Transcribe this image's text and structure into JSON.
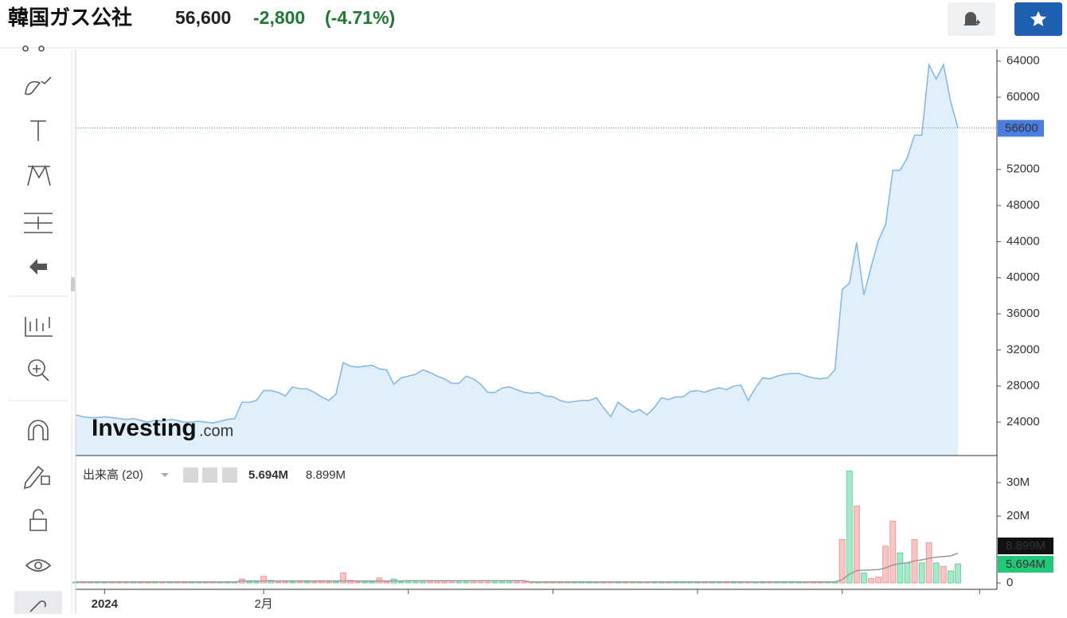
{
  "header": {
    "title": "韓国ガス公社",
    "price": "56,600",
    "change": "-2,800",
    "change_pct": "(-4.71%)",
    "watermark": [
      "Investing",
      ".com"
    ]
  },
  "chart_data": [
    {
      "type": "area",
      "color": "#86b9e4",
      "fill": "#e1effa",
      "categories": [
        null,
        null,
        null,
        null,
        "2024",
        null,
        null,
        null,
        null,
        null,
        null,
        null,
        null,
        null,
        null,
        null,
        null,
        null,
        null,
        null,
        null,
        null,
        null,
        null,
        null,
        null,
        "2月",
        null,
        null,
        null,
        null,
        null,
        null,
        null,
        null,
        null,
        null,
        null,
        null,
        null,
        null,
        null,
        null,
        null,
        null,
        null,
        null,
        null,
        null,
        null,
        null,
        null,
        null,
        null,
        null,
        null,
        null,
        null,
        null,
        null,
        null,
        null,
        null,
        null,
        null,
        null,
        null,
        null,
        null,
        null,
        null,
        null,
        null,
        null,
        null,
        null,
        null,
        null,
        null,
        null,
        null,
        null,
        null,
        null,
        null,
        null,
        null,
        null,
        null,
        null,
        null,
        null,
        null,
        null,
        null,
        null,
        null,
        null,
        null,
        null,
        null,
        null,
        null,
        null,
        null,
        null,
        null,
        null,
        null,
        null,
        null,
        null,
        null,
        null,
        null,
        null,
        null,
        null,
        null,
        null,
        null,
        null,
        null
      ],
      "values": [
        24800,
        24600,
        24500,
        24500,
        24600,
        24500,
        24400,
        24300,
        24400,
        24200,
        24000,
        24200,
        24100,
        24300,
        24200,
        24000,
        24000,
        24100,
        24000,
        23900,
        24100,
        24300,
        24400,
        26200,
        26200,
        26400,
        27500,
        27500,
        27300,
        26900,
        27900,
        27700,
        27700,
        27300,
        26800,
        26400,
        27100,
        30600,
        30200,
        30100,
        30200,
        30300,
        29900,
        29800,
        28200,
        28900,
        29100,
        29300,
        29800,
        29500,
        29100,
        28800,
        28300,
        28300,
        29100,
        28800,
        28200,
        27300,
        27300,
        27800,
        27900,
        27600,
        27300,
        27200,
        27300,
        26900,
        26800,
        26400,
        26200,
        26300,
        26400,
        26400,
        26700,
        25600,
        24600,
        26200,
        25600,
        25100,
        25400,
        24800,
        25600,
        26700,
        26500,
        26800,
        26800,
        27400,
        27500,
        27300,
        27600,
        27800,
        27600,
        28000,
        28100,
        26400,
        27800,
        28900,
        28800,
        29100,
        29300,
        29400,
        29400,
        29100,
        28900,
        28800,
        28900,
        29800,
        38700,
        39400,
        43900,
        38100,
        41200,
        44100,
        45900,
        51900,
        51900,
        53300,
        55800,
        55800,
        63600,
        62000,
        63600,
        59500,
        56600
      ],
      "xlim": [
        0,
        122
      ],
      "xticks": [
        4,
        26,
        46,
        66,
        86,
        106,
        125
      ],
      "ylim": [
        20300,
        65300
      ],
      "yticks": [
        24000,
        28000,
        32000,
        36000,
        40000,
        44000,
        48000,
        52000,
        60000,
        64000
      ],
      "tag_color": "#4a7de0"
    },
    {
      "type": "bar",
      "title": "出来高 (20)",
      "series": [
        {
          "values": [
            300000,
            300000,
            300000,
            300000,
            300000,
            300000,
            300000,
            300000,
            300000,
            300000,
            300000,
            300000,
            300000,
            300000,
            300000,
            300000,
            300000,
            300000,
            300000,
            300000,
            300000,
            300000,
            300000,
            1200000,
            300000,
            300000,
            2000000,
            800000,
            300000,
            300000,
            300000,
            300000,
            300000,
            300000,
            300000,
            300000,
            300000,
            3000000,
            800000,
            300000,
            300000,
            300000,
            1500000,
            300000,
            1200000,
            300000,
            300000,
            300000,
            300000,
            300000,
            300000,
            300000,
            300000,
            300000,
            300000,
            300000,
            300000,
            300000,
            300000,
            300000,
            300000,
            300000,
            300000,
            300000,
            300000,
            300000,
            300000,
            300000,
            300000,
            300000,
            300000,
            300000,
            300000,
            300000,
            300000,
            300000,
            300000,
            300000,
            300000,
            300000,
            300000,
            300000,
            300000,
            300000,
            300000,
            300000,
            300000,
            300000,
            300000,
            300000,
            300000,
            300000,
            300000,
            300000,
            300000,
            300000,
            300000,
            300000,
            300000,
            300000,
            300000,
            300000,
            300000,
            300000,
            300000,
            300000,
            13000000,
            33500000,
            23000000,
            3000000,
            1300000,
            1800000,
            11000000,
            18500000,
            9000000,
            6000000,
            13000000,
            6000000,
            12000000,
            6000000,
            5000000,
            3600000,
            5694000
          ],
          "colors": [
            "#4fcf97",
            "#f28b8b",
            "#f28b8b",
            "#4fcf97",
            "#4fcf97",
            "#f28b8b",
            "#f28b8b",
            "#f28b8b",
            "#4fcf97",
            "#f28b8b",
            "#f28b8b",
            "#4fcf97",
            "#f28b8b",
            "#4fcf97",
            "#f28b8b",
            "#f28b8b",
            "#4fcf97",
            "#4fcf97",
            "#f28b8b",
            "#f28b8b",
            "#4fcf97",
            "#4fcf97",
            "#4fcf97",
            "#f28b8b",
            "#4fcf97",
            "#4fcf97",
            "#f28b8b",
            "#4fcf97",
            "#f28b8b",
            "#f28b8b",
            "#4fcf97",
            "#f28b8b",
            "#4fcf97",
            "#f28b8b",
            "#f28b8b",
            "#f28b8b",
            "#4fcf97",
            "#f28b8b",
            "#f28b8b",
            "#f28b8b",
            "#4fcf97",
            "#4fcf97",
            "#f28b8b",
            "#f28b8b",
            "#4fcf97",
            "#4fcf97",
            "#4fcf97",
            "#4fcf97",
            "#4fcf97",
            "#f28b8b",
            "#f28b8b",
            "#f28b8b",
            "#f28b8b",
            "#4fcf97",
            "#4fcf97",
            "#f28b8b",
            "#f28b8b",
            "#f28b8b",
            "#4fcf97",
            "#4fcf97",
            "#4fcf97",
            "#f28b8b",
            "#f28b8b",
            "#f28b8b",
            "#4fcf97",
            "#f28b8b",
            "#f28b8b",
            "#f28b8b",
            "#f28b8b",
            "#4fcf97",
            "#4fcf97",
            "#4fcf97",
            "#4fcf97",
            "#f28b8b",
            "#f28b8b",
            "#4fcf97",
            "#f28b8b",
            "#f28b8b",
            "#4fcf97",
            "#f28b8b",
            "#4fcf97",
            "#4fcf97",
            "#f28b8b",
            "#4fcf97",
            "#4fcf97",
            "#4fcf97",
            "#4fcf97",
            "#f28b8b",
            "#4fcf97",
            "#4fcf97",
            "#f28b8b",
            "#4fcf97",
            "#4fcf97",
            "#f28b8b",
            "#4fcf97",
            "#4fcf97",
            "#f28b8b",
            "#4fcf97",
            "#4fcf97",
            "#4fcf97",
            "#4fcf97",
            "#f28b8b",
            "#f28b8b",
            "#f28b8b",
            "#4fcf97",
            "#4fcf97",
            "#f28b8b",
            "#4fcf97",
            "#f28b8b",
            "#4fcf97",
            "#f28b8b",
            "#f28b8b",
            "#f28b8b",
            "#f28b8b",
            "#4fcf97",
            "#4fcf97",
            "#f28b8b",
            "#4fcf97",
            "#f28b8b",
            "#4fcf97",
            "#f28b8b",
            "#4fcf97",
            "#4fcf97"
          ],
          "last_label": "5.694M",
          "tag_color": "#22c77a"
        },
        {
          "color": "#999999",
          "values": [
            300000,
            300000,
            300000,
            300000,
            300000,
            300000,
            300000,
            300000,
            300000,
            300000,
            300000,
            300000,
            300000,
            300000,
            300000,
            300000,
            300000,
            300000,
            300000,
            300000,
            300000,
            300000,
            300000,
            600000,
            600000,
            600000,
            600000,
            600000,
            600000,
            600000,
            600000,
            600000,
            600000,
            600000,
            600000,
            600000,
            600000,
            600000,
            600000,
            600000,
            600000,
            600000,
            600000,
            600000,
            600000,
            600000,
            700000,
            700000,
            700000,
            700000,
            700000,
            700000,
            700000,
            700000,
            700000,
            700000,
            700000,
            700000,
            700000,
            700000,
            700000,
            700000,
            700000,
            300000,
            300000,
            300000,
            300000,
            300000,
            300000,
            300000,
            300000,
            300000,
            300000,
            300000,
            300000,
            300000,
            300000,
            300000,
            300000,
            300000,
            300000,
            300000,
            300000,
            300000,
            300000,
            300000,
            300000,
            300000,
            300000,
            300000,
            300000,
            300000,
            300000,
            300000,
            300000,
            300000,
            300000,
            300000,
            300000,
            300000,
            300000,
            300000,
            300000,
            300000,
            300000,
            300000,
            1000000,
            2600000,
            3700000,
            3800000,
            3900000,
            4000000,
            4500000,
            5400000,
            5800000,
            6000000,
            6600000,
            6900000,
            7400000,
            7700000,
            7900000,
            8100000,
            8899000
          ],
          "last_label": "8.899M",
          "tag_color": "#111111"
        }
      ],
      "ylim": [
        -1900000,
        38100000
      ],
      "yticks": [
        0,
        {
          "value": 20000000,
          "label": "20M"
        },
        {
          "value": 30000000,
          "label": "30M"
        }
      ]
    }
  ]
}
